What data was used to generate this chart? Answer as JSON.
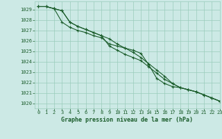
{
  "title": "Graphe pression niveau de la mer (hPa)",
  "bg_color": "#cce9e5",
  "grid_color": "#99ccbb",
  "line_color": "#1a5c2a",
  "xlim": [
    -0.5,
    23
  ],
  "ylim": [
    1019.5,
    1029.8
  ],
  "yticks": [
    1020,
    1021,
    1022,
    1023,
    1024,
    1025,
    1026,
    1027,
    1028,
    1029
  ],
  "xticks": [
    0,
    1,
    2,
    3,
    4,
    5,
    6,
    7,
    8,
    9,
    10,
    11,
    12,
    13,
    14,
    15,
    16,
    17,
    18,
    19,
    20,
    21,
    22,
    23
  ],
  "series1": [
    1029.3,
    1029.3,
    1029.1,
    1028.9,
    1027.8,
    1027.4,
    1027.1,
    1026.8,
    1026.5,
    1026.2,
    1025.7,
    1025.3,
    1024.9,
    1024.4,
    1023.8,
    1023.2,
    1022.6,
    1021.9,
    1021.5,
    1021.3,
    1021.1,
    1020.8,
    1020.5,
    1020.2
  ],
  "series2": [
    1029.3,
    1029.3,
    1029.1,
    1028.9,
    1027.8,
    1027.4,
    1027.1,
    1026.8,
    1026.5,
    1025.5,
    1025.1,
    1024.7,
    1024.4,
    1024.1,
    1023.5,
    1022.9,
    1022.3,
    1021.9,
    1021.5,
    1021.3,
    1021.1,
    1020.8,
    1020.5,
    1020.2
  ],
  "series3": [
    1029.3,
    1029.3,
    1029.1,
    1027.8,
    1027.3,
    1027.0,
    1026.8,
    1026.5,
    1026.3,
    1025.7,
    1025.5,
    1025.3,
    1025.1,
    1024.8,
    1023.7,
    1022.4,
    1021.9,
    1021.6,
    1021.5,
    1021.3,
    1021.1,
    1020.8,
    1020.5,
    1020.2
  ]
}
